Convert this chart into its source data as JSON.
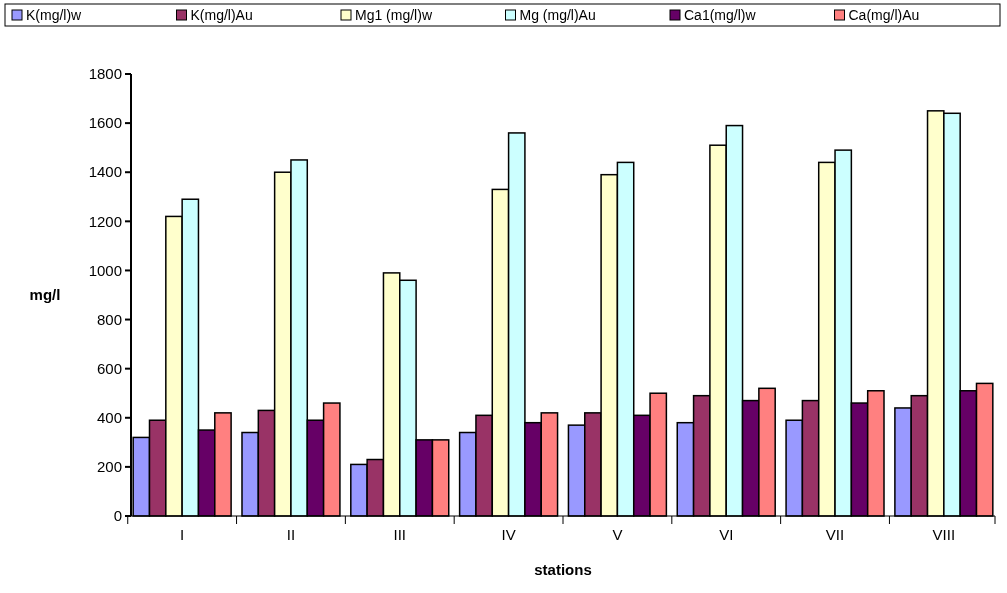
{
  "chart_data": {
    "type": "bar",
    "xlabel": "stations",
    "ylabel": "mg/l",
    "categories": [
      "I",
      "II",
      "III",
      "IV",
      "V",
      "VI",
      "VII",
      "VIII"
    ],
    "ylim": [
      0,
      1800
    ],
    "yticks": [
      0,
      200,
      400,
      600,
      800,
      1000,
      1200,
      1400,
      1600,
      1800
    ],
    "grid": false,
    "legend": "top",
    "series": [
      {
        "name": "K(mg/l)w",
        "color": "#9999ff",
        "values": [
          320,
          340,
          210,
          340,
          370,
          380,
          390,
          440
        ]
      },
      {
        "name": "K(mg/l)Au",
        "color": "#993366",
        "values": [
          390,
          430,
          230,
          410,
          420,
          490,
          470,
          490
        ]
      },
      {
        "name": "Mg1 (mg/l)w",
        "color": "#ffffcc",
        "values": [
          1220,
          1400,
          990,
          1330,
          1390,
          1510,
          1440,
          1650
        ]
      },
      {
        "name": "Mg (mg/l)Au",
        "color": "#ccffff",
        "values": [
          1290,
          1450,
          960,
          1560,
          1440,
          1590,
          1490,
          1640
        ]
      },
      {
        "name": "Ca1(mg/l)w",
        "color": "#660066",
        "values": [
          350,
          390,
          310,
          380,
          410,
          470,
          460,
          510
        ]
      },
      {
        "name": "Ca(mg/l)Au",
        "color": "#ff8080",
        "values": [
          420,
          460,
          310,
          420,
          500,
          520,
          510,
          540
        ]
      }
    ]
  }
}
